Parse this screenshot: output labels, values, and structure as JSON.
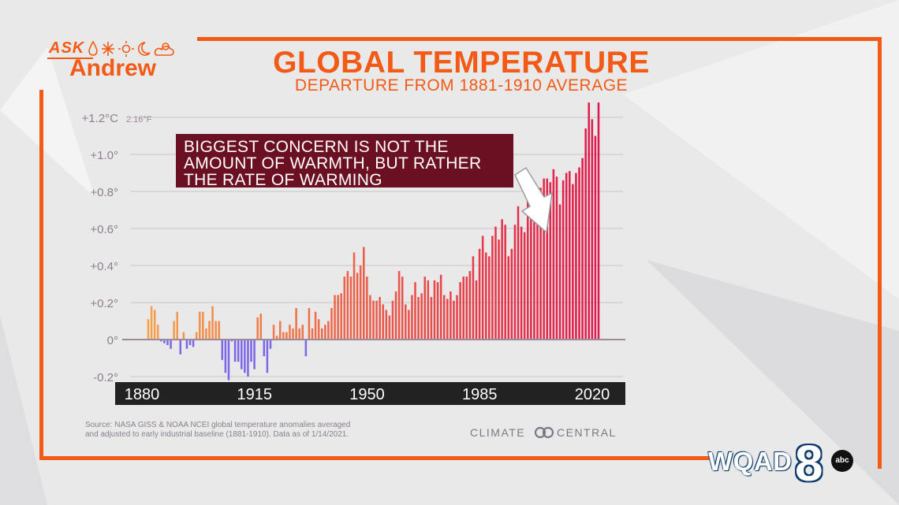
{
  "branding": {
    "ask_word": "ASK",
    "ask_name": "Andrew",
    "station": "WQAD",
    "station_number": "8",
    "network_badge": "abc",
    "icons": [
      "raindrop-icon",
      "snowflake-icon",
      "sun-icon",
      "moon-icon",
      "partly-cloudy-icon"
    ],
    "accent_color": "#f25a15",
    "callout_color": "#6b1022"
  },
  "callout": {
    "line1": "BIGGEST CONCERN IS NOT THE",
    "line2": "AMOUNT OF WARMTH, BUT RATHER",
    "line3": "THE RATE OF WARMING"
  },
  "source": {
    "line1": "Source: NASA GISS & NOAA NCEI global temperature anomalies averaged",
    "line2": "and adjusted to early industrial baseline (1881-1910). Data as of 1/14/2021."
  },
  "credit": {
    "left": "CLIMATE",
    "right": "CENTRAL"
  },
  "chart_data": {
    "type": "bar",
    "title": "GLOBAL TEMPERATURE",
    "subtitle": "DEPARTURE FROM 1881-1910 AVERAGE",
    "ylim": [
      -0.2,
      1.2
    ],
    "y_ticks": [
      {
        "value": 1.2,
        "label": "+1.2°C"
      },
      {
        "value": 1.0,
        "label": "+1.0°"
      },
      {
        "value": 0.8,
        "label": "+0.8°"
      },
      {
        "value": 0.6,
        "label": "+0.6°"
      },
      {
        "value": 0.4,
        "label": "+0.4°"
      },
      {
        "value": 0.2,
        "label": "+0.2°"
      },
      {
        "value": 0.0,
        "label": "0°"
      },
      {
        "value": -0.2,
        "label": "-0.2°"
      }
    ],
    "y_secondary_label": "2.16°F",
    "x_ticks": [
      "1880",
      "1915",
      "1950",
      "1985",
      "2020"
    ],
    "x_range": [
      1880,
      2020
    ],
    "grid": true,
    "colors": {
      "cool": "#7b67e8",
      "warm_low": "#f7a04a",
      "warm_high": "#e0174a"
    },
    "years_start": 1880,
    "values": [
      0.11,
      0.18,
      0.16,
      0.08,
      -0.01,
      -0.02,
      -0.03,
      -0.05,
      0.1,
      0.15,
      -0.08,
      0.04,
      -0.05,
      -0.03,
      -0.04,
      0.04,
      0.15,
      0.15,
      0.06,
      0.1,
      0.18,
      0.1,
      0.1,
      -0.11,
      -0.18,
      -0.22,
      -0.01,
      -0.12,
      -0.12,
      -0.16,
      -0.18,
      -0.2,
      -0.12,
      -0.16,
      0.12,
      0.14,
      -0.09,
      -0.18,
      -0.05,
      0.08,
      0.02,
      0.1,
      0.04,
      0.04,
      0.08,
      0.06,
      0.17,
      0.06,
      0.08,
      -0.09,
      0.17,
      0.06,
      0.15,
      0.11,
      0.06,
      0.08,
      0.1,
      0.17,
      0.24,
      0.24,
      0.25,
      0.34,
      0.37,
      0.34,
      0.47,
      0.36,
      0.4,
      0.5,
      0.34,
      0.24,
      0.21,
      0.21,
      0.23,
      0.19,
      0.16,
      0.13,
      0.21,
      0.26,
      0.37,
      0.34,
      0.19,
      0.16,
      0.24,
      0.31,
      0.23,
      0.25,
      0.34,
      0.32,
      0.23,
      0.32,
      0.31,
      0.35,
      0.24,
      0.22,
      0.26,
      0.21,
      0.24,
      0.31,
      0.34,
      0.34,
      0.37,
      0.45,
      0.32,
      0.49,
      0.56,
      0.47,
      0.45,
      0.56,
      0.61,
      0.54,
      0.65,
      0.62,
      0.45,
      0.49,
      0.62,
      0.72,
      0.61,
      0.58,
      0.82,
      0.72,
      0.65,
      0.76,
      0.82,
      0.87,
      0.87,
      0.85,
      0.92,
      0.88,
      0.73,
      0.86,
      0.9,
      0.91,
      0.84,
      0.9,
      0.93,
      0.98,
      1.14,
      1.28,
      1.19,
      1.1,
      1.28
    ]
  }
}
